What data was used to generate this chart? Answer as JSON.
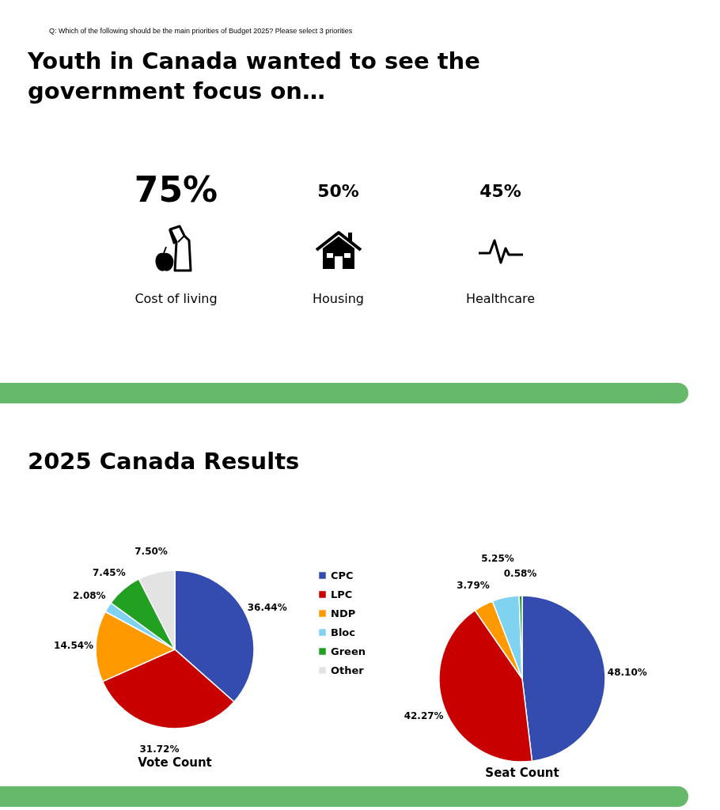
{
  "chart_data": [
    {
      "type": "other",
      "subtitle": "Q: Which of the following should be the main priorities of Budget 2025? Please select 3 priorities",
      "title": "Youth in Canada wanted to see the government focus on…",
      "categories": [
        "Cost of living",
        "Housing",
        "Healthcare"
      ],
      "values": [
        75,
        50,
        45
      ],
      "value_labels": [
        "75%",
        "50%",
        "45%"
      ]
    },
    {
      "type": "pie",
      "title": "2025 Canada Results",
      "xlabel": "Vote Count",
      "categories": [
        "CPC",
        "LPC",
        "NDP",
        "Bloc",
        "Green",
        "Other"
      ],
      "values": [
        36.44,
        31.72,
        14.54,
        2.08,
        7.45,
        7.5
      ],
      "colors": [
        "#344bb0",
        "#c80000",
        "#ff9900",
        "#7fd3f0",
        "#22a022",
        "#e3e3e3"
      ],
      "value_labels": [
        "36.44%",
        "31.72%",
        "14.54%",
        "2.08%",
        "7.45%",
        "7.50%"
      ],
      "legend": "right"
    },
    {
      "type": "pie",
      "xlabel": "Seat Count",
      "categories": [
        null,
        null,
        null,
        null,
        null
      ],
      "values": [
        48.1,
        42.27,
        3.79,
        5.25,
        0.58
      ],
      "colors": [
        "#344bb0",
        "#c80000",
        "#ff9900",
        "#7fd3f0",
        "#22a022"
      ],
      "value_labels": [
        "48.10%",
        "42.27%",
        "3.79%",
        "5.25%",
        "0.58%"
      ]
    }
  ]
}
